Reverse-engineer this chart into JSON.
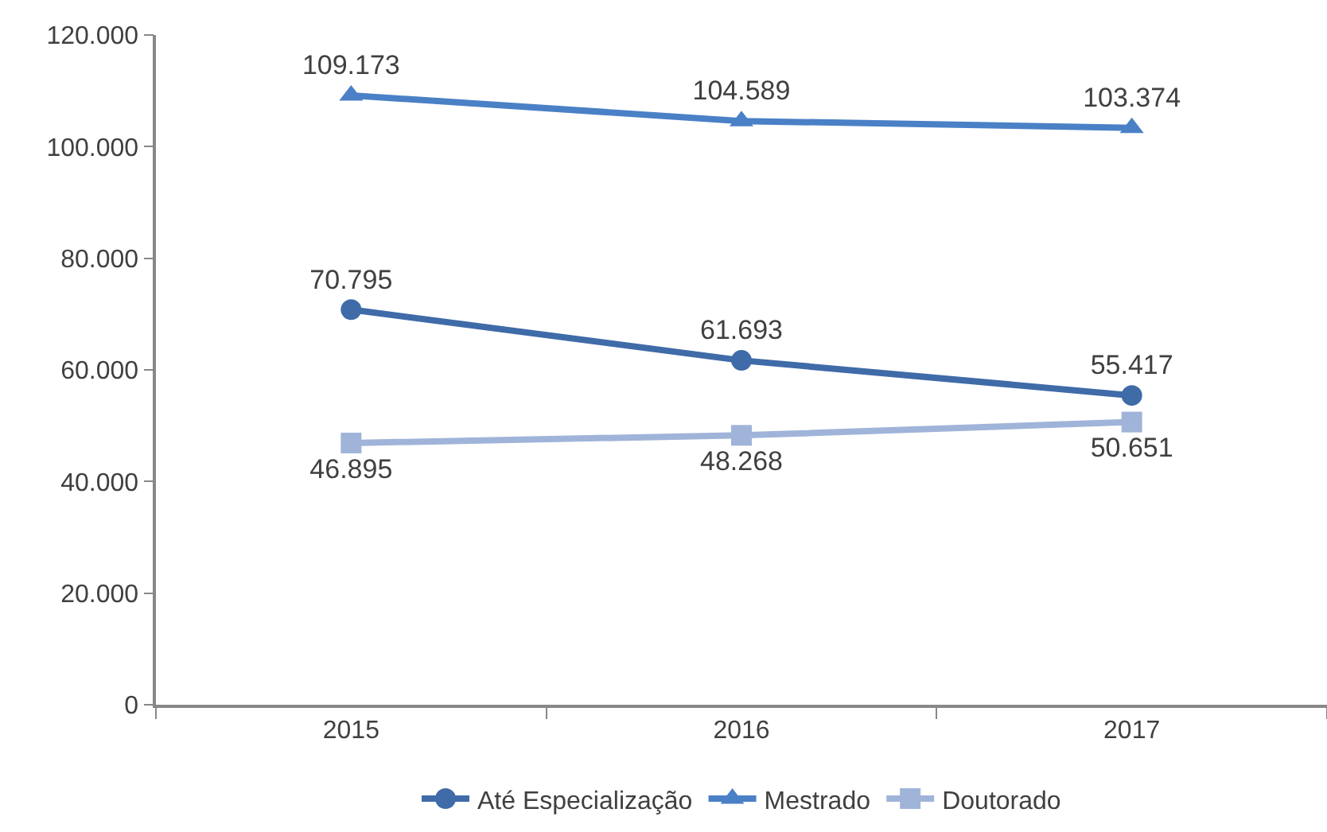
{
  "chart_data": {
    "type": "line",
    "categories": [
      "2015",
      "2016",
      "2017"
    ],
    "series": [
      {
        "name": "Até Especialização",
        "color": "#3f6ba8",
        "marker": "circle",
        "values": [
          70795,
          61693,
          55417
        ],
        "value_labels": [
          "70.795",
          "61.693",
          "55.417"
        ]
      },
      {
        "name": "Mestrado",
        "color": "#4a80c6",
        "marker": "triangle",
        "values": [
          109173,
          104589,
          103374
        ],
        "value_labels": [
          "109.173",
          "104.589",
          "103.374"
        ]
      },
      {
        "name": "Doutorado",
        "color": "#a0b4d9",
        "marker": "square",
        "values": [
          46895,
          48268,
          50651
        ],
        "value_labels": [
          "46.895",
          "48.268",
          "50.651"
        ]
      }
    ],
    "ylim": [
      0,
      120000
    ],
    "yticks": [
      {
        "value": 0,
        "label": "0"
      },
      {
        "value": 20000,
        "label": "20.000"
      },
      {
        "value": 40000,
        "label": "40.000"
      },
      {
        "value": 60000,
        "label": "60.000"
      },
      {
        "value": 80000,
        "label": "80.000"
      },
      {
        "value": 100000,
        "label": "100.000"
      },
      {
        "value": 120000,
        "label": "120.000"
      }
    ],
    "grid": false,
    "legend": "bottom",
    "line_style": "solid"
  }
}
